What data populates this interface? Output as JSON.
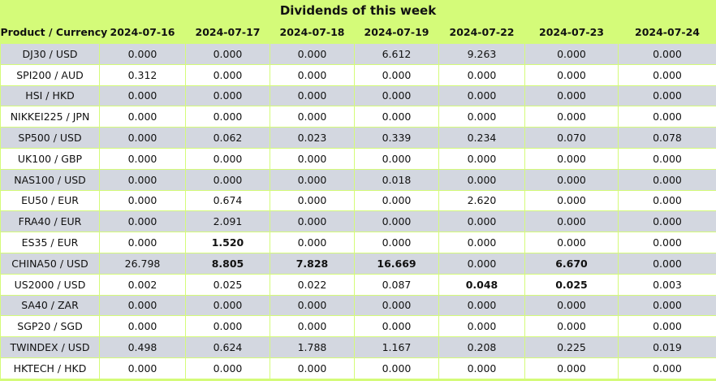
{
  "title": "Dividends of this week",
  "columns": [
    "Product / Currency",
    "2024-07-16",
    "2024-07-17",
    "2024-07-18",
    "2024-07-19",
    "2024-07-22",
    "2024-07-23",
    "2024-07-24"
  ],
  "rows": [
    {
      "product": "DJ30 / USD",
      "values": [
        "0.000",
        "0.000",
        "0.000",
        "6.612",
        "9.263",
        "0.000",
        "0.000"
      ],
      "bold": []
    },
    {
      "product": "SPI200 / AUD",
      "values": [
        "0.312",
        "0.000",
        "0.000",
        "0.000",
        "0.000",
        "0.000",
        "0.000"
      ],
      "bold": []
    },
    {
      "product": "HSI / HKD",
      "values": [
        "0.000",
        "0.000",
        "0.000",
        "0.000",
        "0.000",
        "0.000",
        "0.000"
      ],
      "bold": []
    },
    {
      "product": "NIKKEI225 / JPN",
      "values": [
        "0.000",
        "0.000",
        "0.000",
        "0.000",
        "0.000",
        "0.000",
        "0.000"
      ],
      "bold": []
    },
    {
      "product": "SP500 / USD",
      "values": [
        "0.000",
        "0.062",
        "0.023",
        "0.339",
        "0.234",
        "0.070",
        "0.078"
      ],
      "bold": []
    },
    {
      "product": "UK100 / GBP",
      "values": [
        "0.000",
        "0.000",
        "0.000",
        "0.000",
        "0.000",
        "0.000",
        "0.000"
      ],
      "bold": []
    },
    {
      "product": "NAS100 / USD",
      "values": [
        "0.000",
        "0.000",
        "0.000",
        "0.018",
        "0.000",
        "0.000",
        "0.000"
      ],
      "bold": []
    },
    {
      "product": "EU50 / EUR",
      "values": [
        "0.000",
        "0.674",
        "0.000",
        "0.000",
        "2.620",
        "0.000",
        "0.000"
      ],
      "bold": []
    },
    {
      "product": "FRA40 / EUR",
      "values": [
        "0.000",
        "2.091",
        "0.000",
        "0.000",
        "0.000",
        "0.000",
        "0.000"
      ],
      "bold": []
    },
    {
      "product": "ES35 / EUR",
      "values": [
        "0.000",
        "1.520",
        "0.000",
        "0.000",
        "0.000",
        "0.000",
        "0.000"
      ],
      "bold": [
        1
      ]
    },
    {
      "product": "CHINA50 / USD",
      "values": [
        "26.798",
        "8.805",
        "7.828",
        "16.669",
        "0.000",
        "6.670",
        "0.000"
      ],
      "bold": [
        1,
        2,
        3,
        5
      ]
    },
    {
      "product": "US2000 / USD",
      "values": [
        "0.002",
        "0.025",
        "0.022",
        "0.087",
        "0.048",
        "0.025",
        "0.003"
      ],
      "bold": [
        4,
        5
      ]
    },
    {
      "product": "SA40 / ZAR",
      "values": [
        "0.000",
        "0.000",
        "0.000",
        "0.000",
        "0.000",
        "0.000",
        "0.000"
      ],
      "bold": []
    },
    {
      "product": "SGP20 / SGD",
      "values": [
        "0.000",
        "0.000",
        "0.000",
        "0.000",
        "0.000",
        "0.000",
        "0.000"
      ],
      "bold": []
    },
    {
      "product": "TWINDEX / USD",
      "values": [
        "0.498",
        "0.624",
        "1.788",
        "1.167",
        "0.208",
        "0.225",
        "0.019"
      ],
      "bold": []
    },
    {
      "product": "HKTECH / HKD",
      "values": [
        "0.000",
        "0.000",
        "0.000",
        "0.000",
        "0.000",
        "0.000",
        "0.000"
      ],
      "bold": []
    }
  ],
  "colors": {
    "header_bg": "#d4fb79",
    "row_odd": "#d3d7e0",
    "row_even": "#ffffff"
  }
}
